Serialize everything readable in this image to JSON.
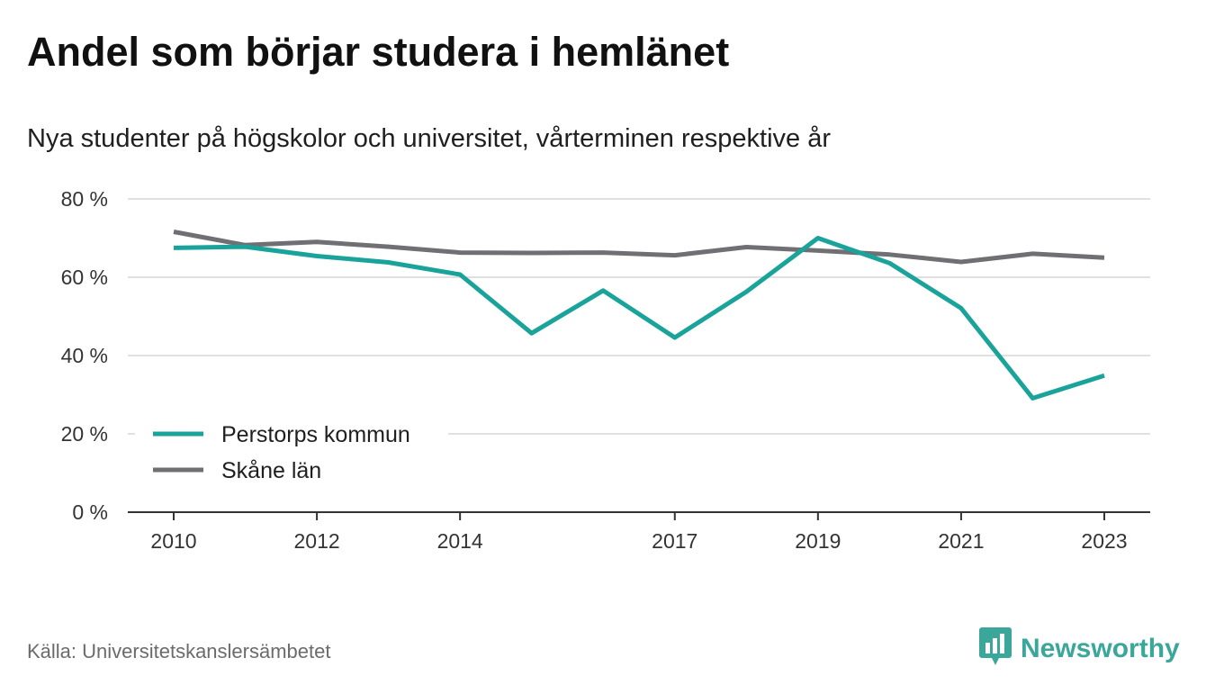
{
  "title": "Andel som börjar studera i hemlänet",
  "subtitle": "Nya studenter på högskolor och universitet, vårterminen respektive år",
  "source": "Källa: Universitetskanslersämbetet",
  "brand": {
    "name": "Newsworthy",
    "icon": "newsworthy-logo-icon"
  },
  "colors": {
    "perstorp": "#1aa39a",
    "skane": "#706f73",
    "grid": "#e0e0e0",
    "axis": "#333333",
    "brand": "#3aa79a"
  },
  "chart_data": {
    "type": "line",
    "x": [
      2010,
      2011,
      2012,
      2013,
      2014,
      2015,
      2016,
      2017,
      2018,
      2019,
      2020,
      2021,
      2022,
      2023
    ],
    "xticks": [
      2010,
      2012,
      2014,
      2017,
      2019,
      2021,
      2023
    ],
    "xlim": [
      2010,
      2023
    ],
    "ylim": [
      0,
      80
    ],
    "yticks": [
      0,
      20,
      40,
      60,
      80
    ],
    "ytick_labels": [
      "0 %",
      "20 %",
      "40 %",
      "60 %",
      "80 %"
    ],
    "grid": true,
    "legend_position": "bottom-left",
    "series": [
      {
        "name": "Perstorps kommun",
        "color": "#1aa39a",
        "values": [
          67.5,
          67.8,
          65.4,
          63.8,
          60.7,
          45.7,
          56.6,
          44.6,
          56.3,
          70.0,
          63.6,
          52.1,
          29.1,
          34.9
        ]
      },
      {
        "name": "Skåne län",
        "color": "#706f73",
        "values": [
          71.6,
          68.2,
          69.0,
          67.8,
          66.3,
          66.2,
          66.3,
          65.6,
          67.7,
          66.8,
          65.8,
          63.9,
          66.0,
          65.0
        ]
      }
    ]
  }
}
